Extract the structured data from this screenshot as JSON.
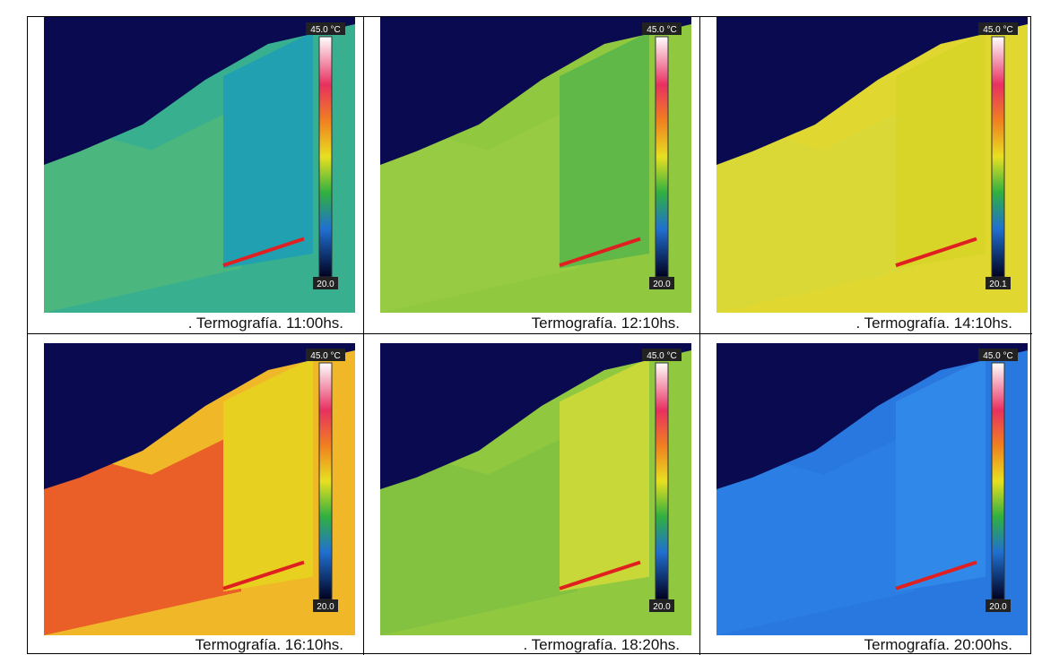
{
  "figure": {
    "panels": [
      {
        "caption": ". Termografía. 11:00hs.",
        "scale_max": "45.0 °C",
        "scale_min": "20.0"
      },
      {
        "caption": "Termografía. 12:10hs.",
        "scale_max": "45.0 °C",
        "scale_min": "20.0"
      },
      {
        "caption": ". Termografía. 14:10hs.",
        "scale_max": "45.0 °C",
        "scale_min": "20.1"
      },
      {
        "caption": "Termografía. 16:10hs.",
        "scale_max": "45.0 °C",
        "scale_min": "20.0"
      },
      {
        "caption": ". Termografía. 18:20hs.",
        "scale_max": "45.0 °C",
        "scale_min": "20.0"
      },
      {
        "caption": "Termografía. 20:00hs.",
        "scale_max": "45.0 °C",
        "scale_min": "20.0"
      }
    ]
  }
}
